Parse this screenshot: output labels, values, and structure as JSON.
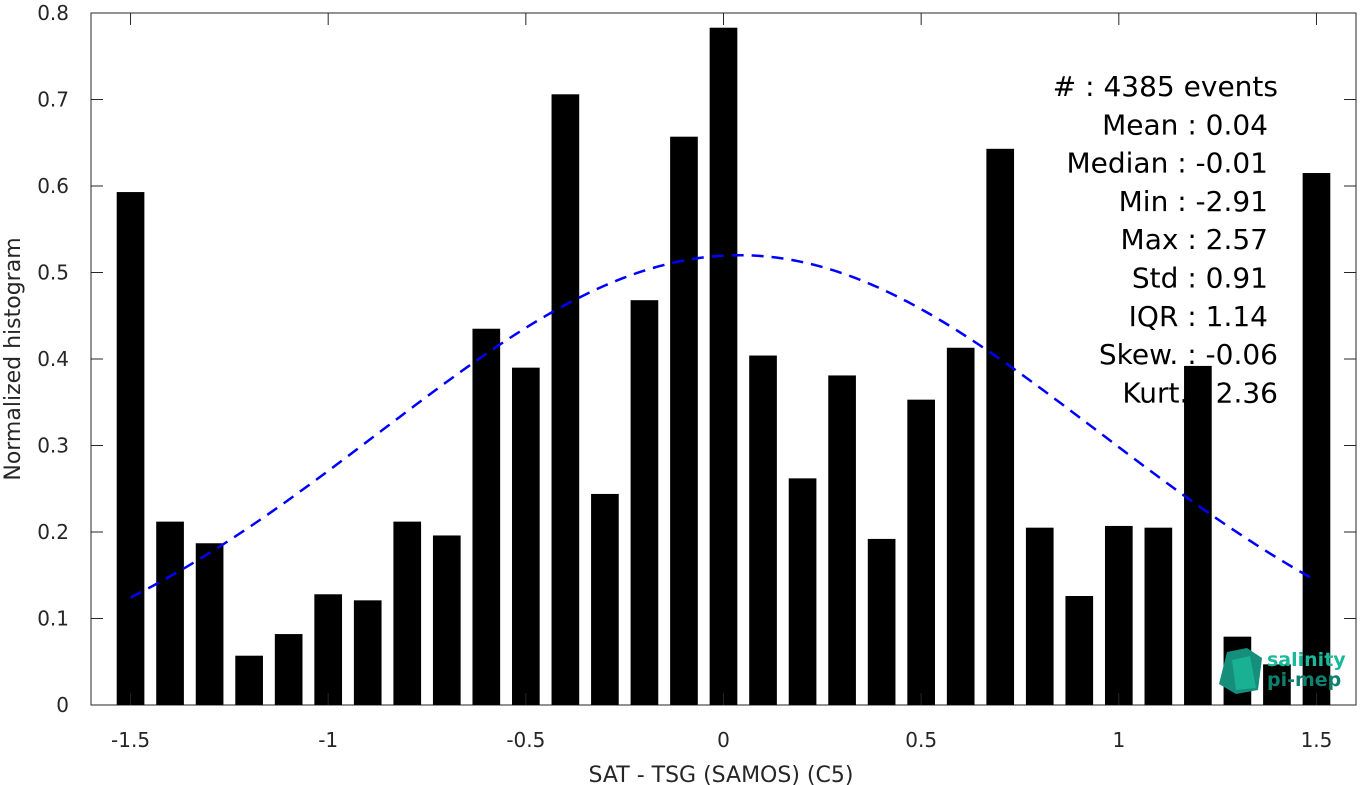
{
  "chart_data": {
    "type": "bar",
    "xlabel": "SAT - TSG (SAMOS) (C5)",
    "ylabel": "Normalized histogram",
    "xlim": [
      -1.6,
      1.6
    ],
    "ylim": [
      0,
      0.8
    ],
    "x_ticks": [
      -1.5,
      -1,
      -0.5,
      0,
      0.5,
      1,
      1.5
    ],
    "x_tick_labels": [
      "-1.5",
      "-1",
      "-0.5",
      "0",
      "0.5",
      "1",
      "1.5"
    ],
    "y_ticks": [
      0,
      0.1,
      0.2,
      0.3,
      0.4,
      0.5,
      0.6,
      0.7,
      0.8
    ],
    "y_tick_labels": [
      "0",
      "0.1",
      "0.2",
      "0.3",
      "0.4",
      "0.5",
      "0.6",
      "0.7",
      "0.8"
    ],
    "grid": false,
    "bar_width": 0.07,
    "bar_color": "#000000",
    "x": [
      -1.5,
      -1.4,
      -1.3,
      -1.2,
      -1.1,
      -1.0,
      -0.9,
      -0.8,
      -0.7,
      -0.6,
      -0.5,
      -0.4,
      -0.3,
      -0.2,
      -0.1,
      0.0,
      0.1,
      0.2,
      0.3,
      0.4,
      0.5,
      0.6,
      0.7,
      0.8,
      0.9,
      1.0,
      1.1,
      1.2,
      1.3,
      1.4,
      1.5
    ],
    "values": [
      0.593,
      0.212,
      0.187,
      0.057,
      0.082,
      0.128,
      0.121,
      0.212,
      0.196,
      0.435,
      0.39,
      0.706,
      0.244,
      0.468,
      0.657,
      0.783,
      0.404,
      0.262,
      0.381,
      0.192,
      0.353,
      0.413,
      0.643,
      0.205,
      0.126,
      0.207,
      0.205,
      0.392,
      0.079,
      0.047,
      0.615
    ],
    "fit": {
      "type": "normal",
      "mean": 0.04,
      "std": 0.91,
      "peak": 0.52,
      "x_range": [
        -1.5,
        1.5
      ],
      "color": "#0000ff",
      "style": "dashed"
    },
    "annotations": [
      {
        "label": "#  ",
        "value": "4385 events"
      },
      {
        "label": "Mean",
        "value": "0.04"
      },
      {
        "label": "Median",
        "value": "-0.01"
      },
      {
        "label": "Min",
        "value": "-2.91"
      },
      {
        "label": "Max",
        "value": "2.57"
      },
      {
        "label": "Std",
        "value": "0.91"
      },
      {
        "label": "IQR",
        "value": "1.14"
      },
      {
        "label": "Skew.",
        "value": "-0.06"
      },
      {
        "label": "Kurt.",
        "value": "2.36"
      }
    ]
  },
  "logo": {
    "line1": "salinity",
    "line2": "pi-mep",
    "color1": "#1bb89a",
    "color2": "#0f7f6e"
  }
}
